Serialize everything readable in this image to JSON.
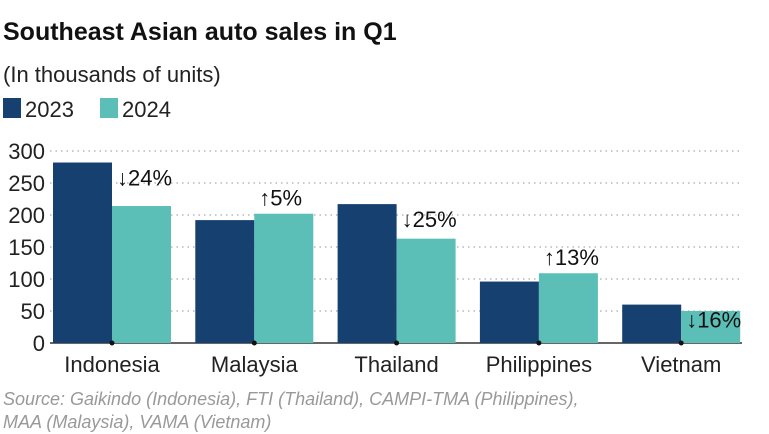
{
  "chart_data": {
    "type": "bar",
    "title": "Southeast Asian auto sales in Q1",
    "subtitle": "(In thousands of units)",
    "categories": [
      "Indonesia",
      "Malaysia",
      "Thailand",
      "Philippines",
      "Vietnam"
    ],
    "series": [
      {
        "name": "2023",
        "color": "#15406f",
        "values": [
          282,
          192,
          217,
          96,
          60
        ]
      },
      {
        "name": "2024",
        "color": "#5bbfb8",
        "values": [
          214,
          202,
          163,
          109,
          50
        ]
      }
    ],
    "annotations": [
      "↓24%",
      "↑5%",
      "↓25%",
      "↑13%",
      "↓16%"
    ],
    "ylim": [
      0,
      300
    ],
    "yticks": [
      0,
      50,
      100,
      150,
      200,
      250,
      300
    ],
    "grid": "horizontal dotted",
    "legend": "top-left",
    "source": [
      "Source: Gaikindo (Indonesia), FTI (Thailand), CAMPI-TMA (Philippines),",
      "MAA (Malaysia), VAMA (Vietnam)"
    ]
  }
}
